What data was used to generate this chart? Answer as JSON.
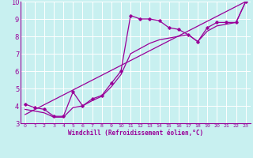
{
  "xlabel": "Windchill (Refroidissement éolien,°C)",
  "ylabel": "",
  "bg_color": "#c8f0f0",
  "grid_color": "#ffffff",
  "line_color": "#990099",
  "xlim": [
    -0.5,
    23.5
  ],
  "ylim": [
    3,
    10
  ],
  "xticks": [
    0,
    1,
    2,
    3,
    4,
    5,
    6,
    7,
    8,
    9,
    10,
    11,
    12,
    13,
    14,
    15,
    16,
    17,
    18,
    19,
    20,
    21,
    22,
    23
  ],
  "yticks": [
    3,
    4,
    5,
    6,
    7,
    8,
    9,
    10
  ],
  "curve1_x": [
    0,
    1,
    2,
    3,
    4,
    5,
    6,
    7,
    8,
    9,
    10,
    11,
    12,
    13,
    14,
    15,
    16,
    17,
    18,
    19,
    20,
    21,
    22,
    23
  ],
  "curve1_y": [
    4.1,
    3.9,
    3.8,
    3.4,
    3.4,
    4.8,
    4.0,
    4.4,
    4.6,
    5.3,
    6.0,
    9.2,
    9.0,
    9.0,
    8.9,
    8.5,
    8.4,
    8.1,
    7.7,
    8.5,
    8.8,
    8.8,
    8.8,
    10.0
  ],
  "curve2_x": [
    0,
    23
  ],
  "curve2_y": [
    3.5,
    10.0
  ],
  "curve3_x": [
    0,
    1,
    2,
    3,
    4,
    5,
    6,
    7,
    8,
    9,
    10,
    11,
    12,
    13,
    14,
    15,
    16,
    17,
    18,
    19,
    20,
    21,
    22,
    23
  ],
  "curve3_y": [
    3.8,
    3.7,
    3.6,
    3.35,
    3.35,
    3.9,
    4.0,
    4.3,
    4.55,
    5.1,
    5.8,
    7.0,
    7.3,
    7.6,
    7.8,
    7.9,
    8.0,
    8.1,
    7.7,
    8.3,
    8.6,
    8.7,
    8.8,
    10.0
  ]
}
